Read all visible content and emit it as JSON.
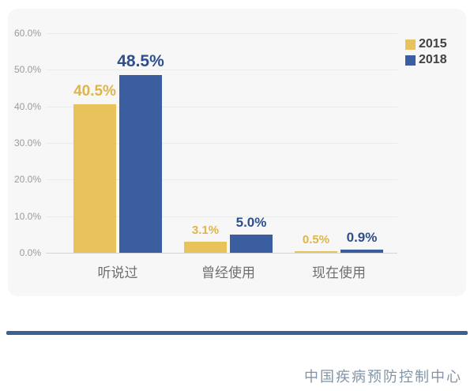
{
  "chart_data": {
    "type": "bar",
    "title": "",
    "categories": [
      "听说过",
      "曾经使用",
      "现在使用"
    ],
    "series": [
      {
        "name": "2015",
        "color": "#e8c35c",
        "label_color": "#dfb44a",
        "values": [
          40.5,
          3.1,
          0.5
        ],
        "labels": [
          "40.5%",
          "3.1%",
          "0.5%"
        ]
      },
      {
        "name": "2018",
        "color": "#3a5ea0",
        "label_color": "#2e4f8e",
        "values": [
          48.5,
          5.0,
          0.9
        ],
        "labels": [
          "48.5%",
          "5.0%",
          "0.9%"
        ]
      }
    ],
    "y_ticks": [
      "60.0%",
      "50.0%",
      "40.0%",
      "30.0%",
      "20.0%",
      "10.0%",
      "0.0%"
    ],
    "ylim": [
      0,
      60
    ],
    "grid": true,
    "legend_position": "top-right"
  },
  "footer": {
    "source_label": "中国疾病预防控制中心"
  },
  "colors": {
    "card_background": "#f7f7f8",
    "divider": "#3b6191",
    "footer_text": "#8295a8",
    "axis_text": "#9b9b9b",
    "category_text": "#6f6f6f"
  }
}
